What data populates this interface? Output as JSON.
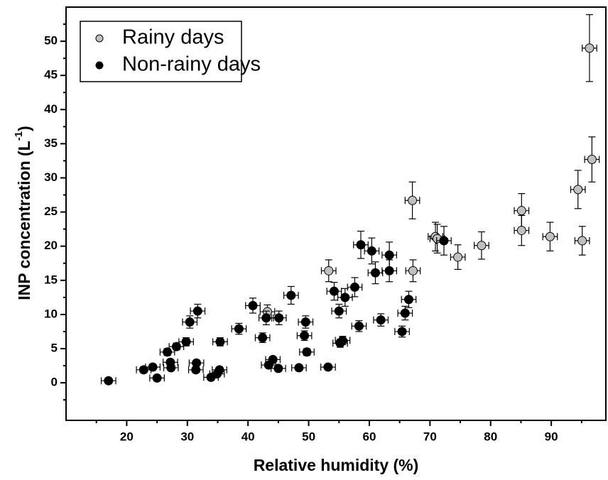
{
  "chart_data": {
    "type": "scatter",
    "xlabel": "Relative humidity (%)",
    "ylabel": "INP concentration  (L",
    "ylabel_sup": "-1",
    "ylabel_end": ")",
    "xlim": [
      10,
      99
    ],
    "ylim": [
      -5.5,
      55
    ],
    "xticks": [
      20,
      30,
      40,
      50,
      60,
      70,
      80,
      90
    ],
    "xticks_minor": [
      15,
      25,
      35,
      45,
      55,
      65,
      75,
      85,
      95
    ],
    "yticks": [
      0,
      5,
      10,
      15,
      20,
      25,
      30,
      35,
      40,
      45,
      50
    ],
    "yticks_minor": [
      -2.5,
      2.5,
      7.5,
      12.5,
      17.5,
      22.5,
      27.5,
      32.5,
      37.5,
      42.5,
      47.5,
      52.5
    ],
    "legend": "upper left",
    "series": [
      {
        "name": "Rainy days",
        "color": "#c0c0c0",
        "xerr": 1.2,
        "x": [
          53.3,
          43.2,
          67.1,
          67.2,
          70.9,
          71.2,
          74.6,
          78.5,
          85.1,
          85.1,
          89.8,
          94.4,
          95.1,
          96.3,
          96.7
        ],
        "values": [
          16.4,
          10.4,
          26.7,
          16.4,
          21.4,
          21.1,
          18.4,
          20.1,
          25.2,
          22.3,
          21.4,
          28.3,
          20.8,
          49,
          32.7
        ],
        "yerr": [
          1.6,
          1.0,
          2.7,
          1.6,
          2.1,
          2.1,
          1.8,
          2.0,
          2.5,
          2.2,
          2.1,
          2.8,
          2.1,
          4.9,
          3.3
        ]
      },
      {
        "name": "Non-rainy days",
        "color": "#000000",
        "xerr": 1.2,
        "x": [
          17,
          22.8,
          24.3,
          25,
          26.7,
          27.2,
          27.3,
          28.2,
          29.8,
          30.4,
          31.4,
          31.5,
          31.7,
          33.9,
          34.9,
          35.3,
          35.4,
          38.5,
          40.8,
          42.4,
          43,
          43.4,
          44.1,
          45,
          45.1,
          47.1,
          48.4,
          49.3,
          49.5,
          49.7,
          53.2,
          54.2,
          55,
          55.2,
          55.6,
          56,
          57.6,
          58.3,
          58.6,
          60.4,
          61,
          61.9,
          63.3,
          63.3,
          65.4,
          65.9,
          66.5,
          72.3
        ],
        "values": [
          0.3,
          1.9,
          2.3,
          0.7,
          4.5,
          3.0,
          2.2,
          5.3,
          6.0,
          8.9,
          1.9,
          2.9,
          10.5,
          0.8,
          1.3,
          1.9,
          6.0,
          7.9,
          11.3,
          6.6,
          9.5,
          2.6,
          3.4,
          2.1,
          9.5,
          12.8,
          2.2,
          6.9,
          8.9,
          4.5,
          2.3,
          13.4,
          10.5,
          5.8,
          6.2,
          12.5,
          14,
          8.3,
          20.2,
          19.3,
          16.1,
          9.2,
          16.4,
          18.7,
          7.5,
          10.2,
          12.2,
          20.8
        ],
        "yerr": [
          0.1,
          0.4,
          0.4,
          0.3,
          0.5,
          0.4,
          0.4,
          0.5,
          0.6,
          0.9,
          0.4,
          0.4,
          1.0,
          0.3,
          0.3,
          0.4,
          0.6,
          0.8,
          1.1,
          0.7,
          1.0,
          0.4,
          0.4,
          0.4,
          1.0,
          1.3,
          0.4,
          0.7,
          0.9,
          0.5,
          0.4,
          1.3,
          1.0,
          0.6,
          0.6,
          1.3,
          1.4,
          0.8,
          2.0,
          1.9,
          1.6,
          0.9,
          1.6,
          1.9,
          0.8,
          1.0,
          1.2,
          2.1
        ]
      }
    ]
  }
}
